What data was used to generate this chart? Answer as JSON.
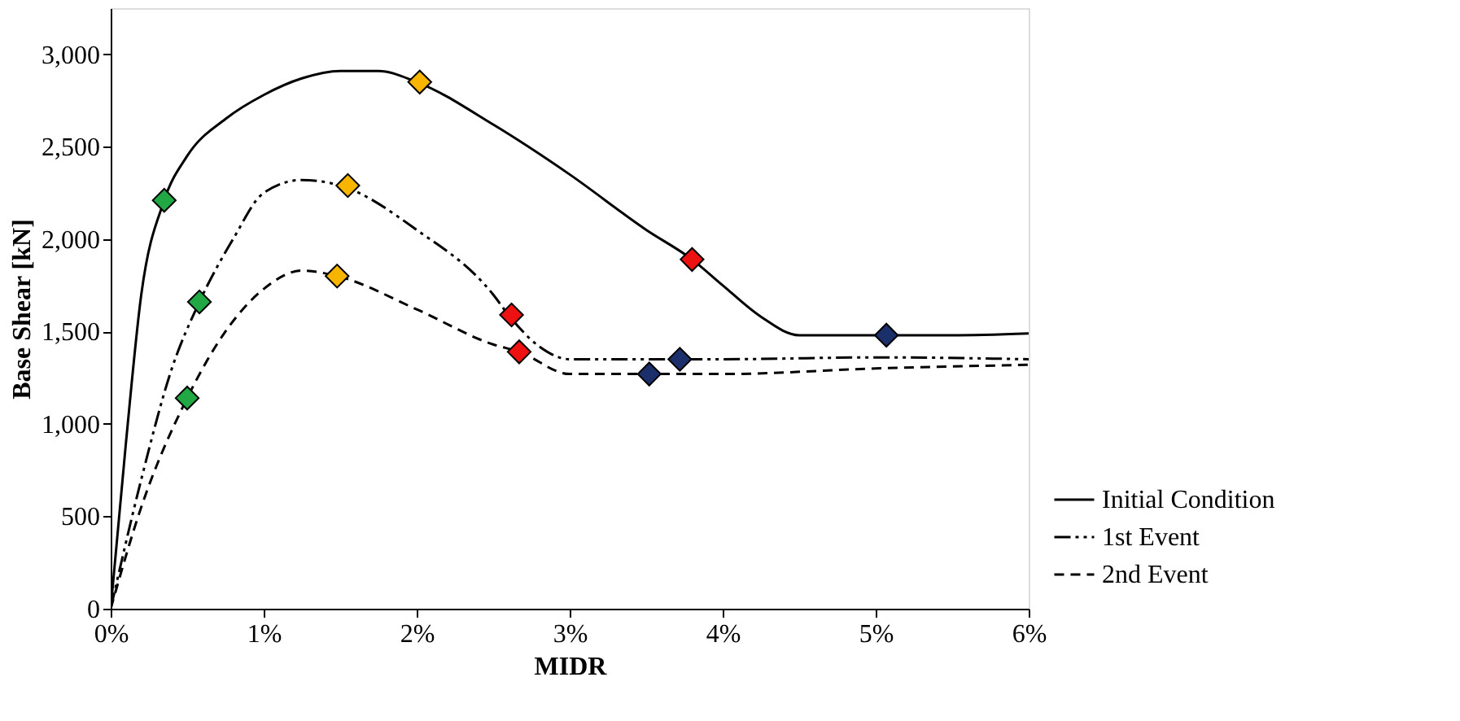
{
  "chart_data": {
    "type": "line",
    "xlabel": "MIDR",
    "ylabel": "Base Shear [kN]",
    "xlim": [
      0,
      6
    ],
    "xticks": [
      {
        "value": 0,
        "label": "0%"
      },
      {
        "value": 1,
        "label": "1%"
      },
      {
        "value": 2,
        "label": "2%"
      },
      {
        "value": 3,
        "label": "3%"
      },
      {
        "value": 4,
        "label": "4%"
      },
      {
        "value": 5,
        "label": "5%"
      },
      {
        "value": 6,
        "label": "6%"
      }
    ],
    "ylim": [
      0,
      3250
    ],
    "yticks": [
      0,
      500,
      {
        "value": 1000,
        "label": "1,000"
      },
      {
        "value": 1500,
        "label": "1,500"
      },
      {
        "value": 2000,
        "label": "2,000"
      },
      {
        "value": 2500,
        "label": "2,500"
      },
      {
        "value": 3000,
        "label": "3,000"
      }
    ],
    "grid": false,
    "legend": "right",
    "series": [
      {
        "name": "Initial Condition",
        "color": "#000000",
        "line_style": "solid",
        "marker": "none",
        "x": [
          0,
          0.1,
          0.2,
          0.35,
          0.5,
          0.75,
          1,
          1.25,
          1.5,
          1.75,
          2,
          2.5,
          3,
          3.5,
          3.8,
          4,
          4.25,
          4.5,
          4.75,
          5,
          5.5,
          6
        ],
        "values": [
          0,
          900,
          1700,
          2210,
          2450,
          2650,
          2780,
          2870,
          2910,
          2910,
          2850,
          2620,
          2350,
          2050,
          1890,
          1750,
          1580,
          1480,
          1480,
          1480,
          1480,
          1490
        ]
      },
      {
        "name": "1st Event",
        "color": "#000000",
        "line_style": "dashdot",
        "marker": "none",
        "x": [
          0,
          0.2,
          0.4,
          0.58,
          0.8,
          1,
          1.25,
          1.5,
          2,
          2.5,
          2.6,
          2.8,
          3,
          3.5,
          3.72,
          4,
          5,
          6
        ],
        "values": [
          0,
          700,
          1300,
          1660,
          2000,
          2250,
          2320,
          2290,
          2050,
          1700,
          1590,
          1420,
          1350,
          1350,
          1350,
          1350,
          1360,
          1350
        ]
      },
      {
        "name": "2nd Event",
        "color": "#000000",
        "line_style": "dashed",
        "marker": "none",
        "x": [
          0,
          0.2,
          0.5,
          0.75,
          1,
          1.25,
          1.48,
          2,
          2.5,
          2.67,
          3,
          3.52,
          4,
          5,
          6
        ],
        "values": [
          0,
          550,
          1140,
          1500,
          1730,
          1830,
          1800,
          1620,
          1430,
          1390,
          1270,
          1270,
          1270,
          1300,
          1320
        ]
      },
      {
        "type": "scatter",
        "marker": "diamond",
        "color": "#21a845",
        "x": [
          0.35,
          0.58,
          0.5
        ],
        "values": [
          2210,
          1660,
          1140
        ]
      },
      {
        "type": "scatter",
        "marker": "diamond",
        "color": "#f7b500",
        "x": [
          2.02,
          1.55,
          1.48
        ],
        "values": [
          2850,
          2290,
          1800
        ]
      },
      {
        "type": "scatter",
        "marker": "diamond",
        "color": "#ee1111",
        "x": [
          3.8,
          2.62,
          2.67
        ],
        "values": [
          1890,
          1590,
          1390
        ]
      },
      {
        "type": "scatter",
        "marker": "diamond",
        "color": "#1b2f6a",
        "x": [
          5.07,
          3.72,
          3.52
        ],
        "values": [
          1480,
          1350,
          1270
        ]
      }
    ]
  }
}
